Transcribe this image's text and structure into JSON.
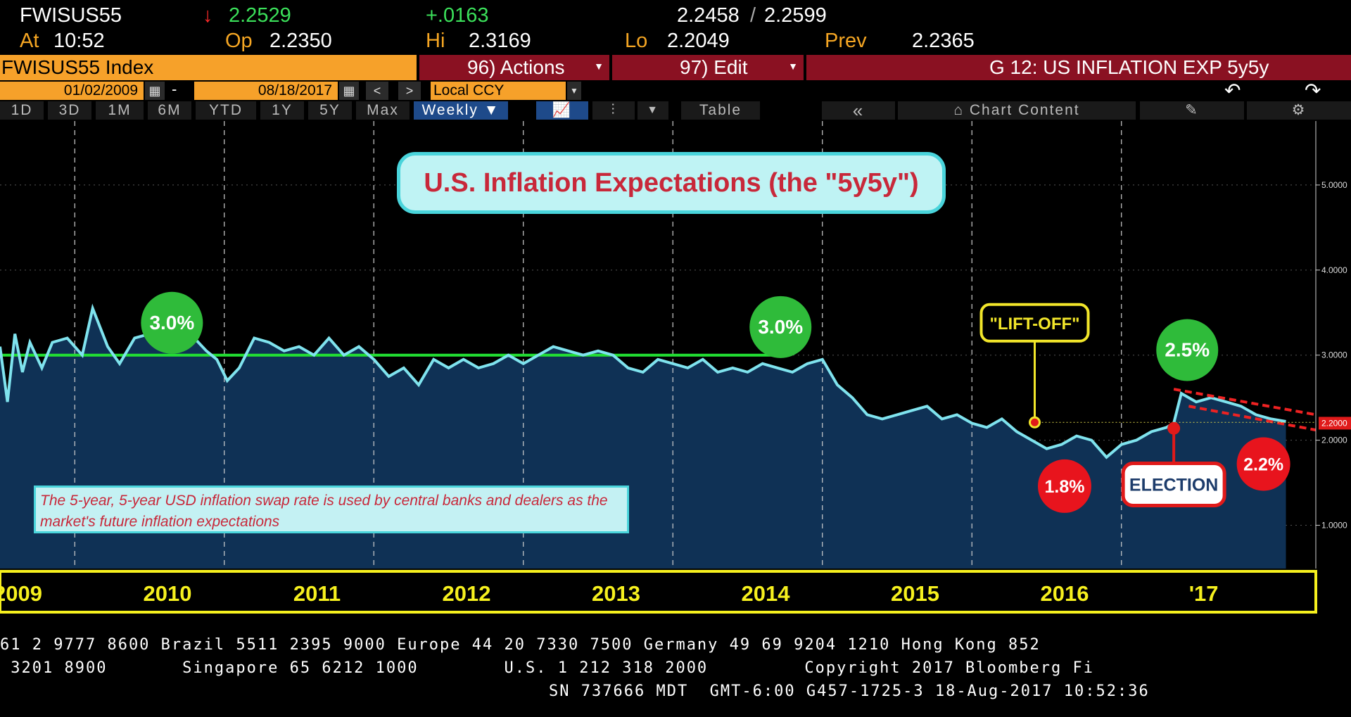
{
  "ticker": {
    "symbol": "FWISUS55",
    "arrow": "↓",
    "last": "2.2529",
    "change": "+.0163",
    "bid": "2.2458",
    "ask": "2.2599",
    "at_label": "At",
    "time": "10:52",
    "op_label": "Op",
    "open": "2.2350",
    "hi_label": "Hi",
    "high": "2.3169",
    "lo_label": "Lo",
    "low": "2.2049",
    "prev_label": "Prev",
    "prev": "2.2365"
  },
  "toolbar": {
    "security": "FWISUS55 Index",
    "actions": "96) Actions",
    "edit": "97) Edit",
    "chart_title": "G 12: US INFLATION EXP 5y5y",
    "start_date": "01/02/2009",
    "end_date": "08/18/2017",
    "currency": "Local CCY",
    "dash": "-"
  },
  "ranges": [
    "1D",
    "3D",
    "1M",
    "6M",
    "YTD",
    "1Y",
    "5Y",
    "Max"
  ],
  "controls": {
    "frequency": "Weekly ▼",
    "table": "Table",
    "collapse": "«",
    "chart_content": "Chart Content"
  },
  "colors": {
    "line": "#7fe3ee",
    "fill": "#0f3155",
    "green_line": "#22e033",
    "green_marker": "#2fbb3a",
    "red_marker": "#e8141d",
    "year_band_text": "#f6f01e",
    "title_red": "#c8283a"
  },
  "chart_data": {
    "type": "line",
    "title": "U.S. Inflation Expectations (the \"5y5y\")",
    "note": "The 5-year, 5-year USD inflation swap rate is used by central banks and dealers as the market's future inflation expectations",
    "ylim": [
      0.5,
      6.0
    ],
    "yticks": [
      "5.0000",
      "4.0000",
      "3.0000",
      "2.0000",
      "1.0000"
    ],
    "ytick_values": [
      5.0,
      4.0,
      3.0,
      2.0,
      1.0
    ],
    "last_value_label": "2.2000",
    "reference_line": 3.0,
    "year_labels": [
      "2009",
      "2010",
      "2011",
      "2012",
      "2013",
      "2014",
      "2015",
      "2016",
      "'17"
    ],
    "small_year_labels": [
      "2009",
      "2010",
      "2011",
      "2012",
      "2013",
      "2014",
      "2015",
      "2016",
      "2017"
    ],
    "x": [
      2009.0,
      2009.05,
      2009.1,
      2009.15,
      2009.2,
      2009.28,
      2009.35,
      2009.45,
      2009.55,
      2009.62,
      2009.72,
      2009.8,
      2009.9,
      2010.0,
      2010.1,
      2010.2,
      2010.3,
      2010.38,
      2010.45,
      2010.52,
      2010.6,
      2010.7,
      2010.8,
      2010.9,
      2011.0,
      2011.1,
      2011.2,
      2011.3,
      2011.4,
      2011.5,
      2011.6,
      2011.7,
      2011.8,
      2011.9,
      2012.0,
      2012.1,
      2012.2,
      2012.3,
      2012.4,
      2012.5,
      2012.6,
      2012.7,
      2012.8,
      2012.9,
      2013.0,
      2013.1,
      2013.2,
      2013.3,
      2013.4,
      2013.5,
      2013.6,
      2013.7,
      2013.8,
      2013.9,
      2014.0,
      2014.1,
      2014.2,
      2014.3,
      2014.4,
      2014.5,
      2014.6,
      2014.7,
      2014.8,
      2014.9,
      2015.0,
      2015.1,
      2015.2,
      2015.3,
      2015.4,
      2015.5,
      2015.6,
      2015.7,
      2015.8,
      2015.9,
      2016.0,
      2016.1,
      2016.2,
      2016.3,
      2016.4,
      2016.5,
      2016.6,
      2016.7,
      2016.8,
      2016.85,
      2016.9,
      2017.0,
      2017.1,
      2017.2,
      2017.3,
      2017.4,
      2017.5,
      2017.6
    ],
    "values": [
      3.1,
      2.45,
      3.25,
      2.8,
      3.15,
      2.85,
      3.15,
      3.2,
      3.0,
      3.55,
      3.1,
      2.9,
      3.2,
      3.25,
      3.35,
      3.05,
      3.2,
      3.05,
      2.95,
      2.7,
      2.85,
      3.2,
      3.15,
      3.05,
      3.1,
      3.0,
      3.2,
      3.0,
      3.1,
      2.95,
      2.75,
      2.85,
      2.65,
      2.95,
      2.85,
      2.95,
      2.85,
      2.9,
      3.0,
      2.9,
      3.0,
      3.1,
      3.05,
      3.0,
      3.05,
      3.0,
      2.85,
      2.8,
      2.95,
      2.9,
      2.85,
      2.95,
      2.8,
      2.85,
      2.8,
      2.9,
      2.85,
      2.8,
      2.9,
      2.95,
      2.65,
      2.5,
      2.3,
      2.25,
      2.3,
      2.35,
      2.4,
      2.25,
      2.3,
      2.2,
      2.15,
      2.25,
      2.1,
      2.0,
      1.9,
      1.95,
      2.05,
      2.0,
      1.8,
      1.95,
      2.0,
      2.1,
      2.15,
      2.2,
      2.55,
      2.45,
      2.5,
      2.45,
      2.4,
      2.3,
      2.25,
      2.22
    ],
    "annotations": [
      {
        "text": "3.0%",
        "x": 2010.15,
        "y": 3.38,
        "kind": "green-circle"
      },
      {
        "text": "3.0%",
        "x": 2014.22,
        "y": 3.33,
        "kind": "green-circle"
      },
      {
        "text": "2.5%",
        "x": 2016.94,
        "y": 3.06,
        "kind": "green-circle"
      },
      {
        "text": "1.8%",
        "x": 2016.12,
        "y": 1.46,
        "kind": "red-circle"
      },
      {
        "text": "2.2%",
        "x": 2017.45,
        "y": 1.72,
        "kind": "red-circle"
      },
      {
        "text": "\"LIFT-OFF\"",
        "x": 2015.92,
        "y": 2.21,
        "kind": "callout-yellow"
      },
      {
        "text": "ELECTION",
        "x": 2016.85,
        "y": 2.14,
        "kind": "callout-red"
      }
    ]
  },
  "footer": {
    "line1": "61 2 9777 8600 Brazil 5511 2395 9000 Europe 44 20 7330 7500 Germany 49 69 9204 1210 Hong Kong 852",
    "line2": " 3201 8900       Singapore 65 6212 1000        U.S. 1 212 318 2000         Copyright 2017 Bloomberg Fi",
    "line3": "SN 737666 MDT  GMT-6:00 G457-1725-3 18-Aug-2017 10:52:36"
  }
}
